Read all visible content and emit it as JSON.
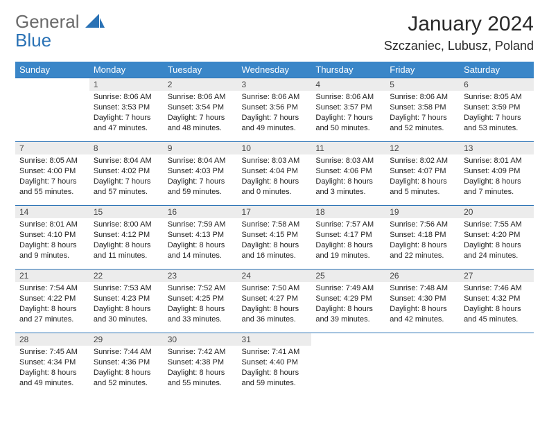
{
  "logo": {
    "general": "General",
    "blue": "Blue"
  },
  "title": "January 2024",
  "location": "Szczaniec, Lubusz, Poland",
  "colors": {
    "header_bg": "#3a86c8",
    "border": "#2a72b5",
    "daynum_bg": "#ececec",
    "logo_gray": "#6a6a6a",
    "logo_blue": "#2a72b5"
  },
  "weekdays": [
    "Sunday",
    "Monday",
    "Tuesday",
    "Wednesday",
    "Thursday",
    "Friday",
    "Saturday"
  ],
  "weeks": [
    [
      null,
      {
        "n": "1",
        "sr": "8:06 AM",
        "ss": "3:53 PM",
        "dl": "7 hours and 47 minutes."
      },
      {
        "n": "2",
        "sr": "8:06 AM",
        "ss": "3:54 PM",
        "dl": "7 hours and 48 minutes."
      },
      {
        "n": "3",
        "sr": "8:06 AM",
        "ss": "3:56 PM",
        "dl": "7 hours and 49 minutes."
      },
      {
        "n": "4",
        "sr": "8:06 AM",
        "ss": "3:57 PM",
        "dl": "7 hours and 50 minutes."
      },
      {
        "n": "5",
        "sr": "8:06 AM",
        "ss": "3:58 PM",
        "dl": "7 hours and 52 minutes."
      },
      {
        "n": "6",
        "sr": "8:05 AM",
        "ss": "3:59 PM",
        "dl": "7 hours and 53 minutes."
      }
    ],
    [
      {
        "n": "7",
        "sr": "8:05 AM",
        "ss": "4:00 PM",
        "dl": "7 hours and 55 minutes."
      },
      {
        "n": "8",
        "sr": "8:04 AM",
        "ss": "4:02 PM",
        "dl": "7 hours and 57 minutes."
      },
      {
        "n": "9",
        "sr": "8:04 AM",
        "ss": "4:03 PM",
        "dl": "7 hours and 59 minutes."
      },
      {
        "n": "10",
        "sr": "8:03 AM",
        "ss": "4:04 PM",
        "dl": "8 hours and 0 minutes."
      },
      {
        "n": "11",
        "sr": "8:03 AM",
        "ss": "4:06 PM",
        "dl": "8 hours and 3 minutes."
      },
      {
        "n": "12",
        "sr": "8:02 AM",
        "ss": "4:07 PM",
        "dl": "8 hours and 5 minutes."
      },
      {
        "n": "13",
        "sr": "8:01 AM",
        "ss": "4:09 PM",
        "dl": "8 hours and 7 minutes."
      }
    ],
    [
      {
        "n": "14",
        "sr": "8:01 AM",
        "ss": "4:10 PM",
        "dl": "8 hours and 9 minutes."
      },
      {
        "n": "15",
        "sr": "8:00 AM",
        "ss": "4:12 PM",
        "dl": "8 hours and 11 minutes."
      },
      {
        "n": "16",
        "sr": "7:59 AM",
        "ss": "4:13 PM",
        "dl": "8 hours and 14 minutes."
      },
      {
        "n": "17",
        "sr": "7:58 AM",
        "ss": "4:15 PM",
        "dl": "8 hours and 16 minutes."
      },
      {
        "n": "18",
        "sr": "7:57 AM",
        "ss": "4:17 PM",
        "dl": "8 hours and 19 minutes."
      },
      {
        "n": "19",
        "sr": "7:56 AM",
        "ss": "4:18 PM",
        "dl": "8 hours and 22 minutes."
      },
      {
        "n": "20",
        "sr": "7:55 AM",
        "ss": "4:20 PM",
        "dl": "8 hours and 24 minutes."
      }
    ],
    [
      {
        "n": "21",
        "sr": "7:54 AM",
        "ss": "4:22 PM",
        "dl": "8 hours and 27 minutes."
      },
      {
        "n": "22",
        "sr": "7:53 AM",
        "ss": "4:23 PM",
        "dl": "8 hours and 30 minutes."
      },
      {
        "n": "23",
        "sr": "7:52 AM",
        "ss": "4:25 PM",
        "dl": "8 hours and 33 minutes."
      },
      {
        "n": "24",
        "sr": "7:50 AM",
        "ss": "4:27 PM",
        "dl": "8 hours and 36 minutes."
      },
      {
        "n": "25",
        "sr": "7:49 AM",
        "ss": "4:29 PM",
        "dl": "8 hours and 39 minutes."
      },
      {
        "n": "26",
        "sr": "7:48 AM",
        "ss": "4:30 PM",
        "dl": "8 hours and 42 minutes."
      },
      {
        "n": "27",
        "sr": "7:46 AM",
        "ss": "4:32 PM",
        "dl": "8 hours and 45 minutes."
      }
    ],
    [
      {
        "n": "28",
        "sr": "7:45 AM",
        "ss": "4:34 PM",
        "dl": "8 hours and 49 minutes."
      },
      {
        "n": "29",
        "sr": "7:44 AM",
        "ss": "4:36 PM",
        "dl": "8 hours and 52 minutes."
      },
      {
        "n": "30",
        "sr": "7:42 AM",
        "ss": "4:38 PM",
        "dl": "8 hours and 55 minutes."
      },
      {
        "n": "31",
        "sr": "7:41 AM",
        "ss": "4:40 PM",
        "dl": "8 hours and 59 minutes."
      },
      null,
      null,
      null
    ]
  ],
  "labels": {
    "sunrise": "Sunrise: ",
    "sunset": "Sunset: ",
    "daylight": "Daylight: "
  }
}
